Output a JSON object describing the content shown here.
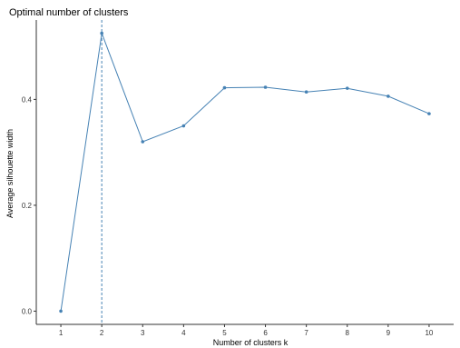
{
  "chart_data": {
    "type": "line",
    "title": "Optimal number of clusters",
    "xlabel": "Number of clusters k",
    "ylabel": "Average silhouette width",
    "x": [
      1,
      2,
      3,
      4,
      5,
      6,
      7,
      8,
      9,
      10
    ],
    "x_tick_labels": [
      "1",
      "2",
      "3",
      "4",
      "5",
      "6",
      "7",
      "8",
      "9",
      "10"
    ],
    "y_ticks": [
      0.0,
      0.2,
      0.4
    ],
    "y_tick_labels": [
      "0.0",
      "0.2",
      "0.4"
    ],
    "ylim": [
      -0.025,
      0.55
    ],
    "series": [
      {
        "values": [
          0.0,
          0.525,
          0.32,
          0.35,
          0.422,
          0.423,
          0.414,
          0.421,
          0.406,
          0.373
        ]
      }
    ],
    "vline_x": 2,
    "grid": false,
    "colors": {
      "line": "#4682B4",
      "point": "#4682B4",
      "vline": "#4682B4",
      "axis": "#333333"
    }
  }
}
